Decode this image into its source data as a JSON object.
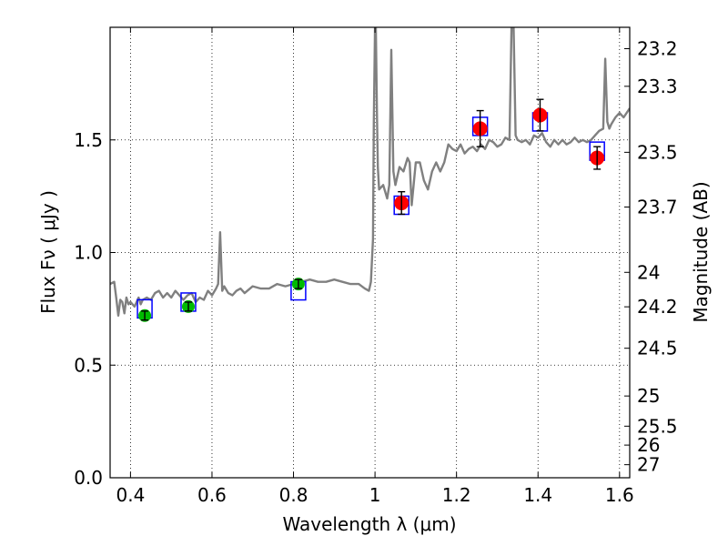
{
  "chart_data": {
    "type": "scatter",
    "title": "",
    "xlabel": "Wavelength  λ (μm)",
    "ylabel": "Flux  Fν  ( μJy )",
    "y2label": "Magnitude (AB)",
    "xlim": [
      0.35,
      1.625
    ],
    "ylim": [
      0.0,
      2.0
    ],
    "grid": true,
    "x_ticks": [
      0.4,
      0.6,
      0.8,
      1.0,
      1.2,
      1.4,
      1.6
    ],
    "x_tick_labels": [
      "0.4",
      "0.6",
      "0.8",
      "1",
      "1.2",
      "1.4",
      "1.6"
    ],
    "y_ticks": [
      0.0,
      0.5,
      1.0,
      1.5
    ],
    "y_tick_labels": [
      "0.0",
      "0.5",
      "1.0",
      "1.5"
    ],
    "y2_ticks": [
      {
        "flux": 1.905,
        "label": "23.2"
      },
      {
        "flux": 1.738,
        "label": "23.3"
      },
      {
        "flux": 1.445,
        "label": "23.5"
      },
      {
        "flux": 1.202,
        "label": "23.7"
      },
      {
        "flux": 0.912,
        "label": "24"
      },
      {
        "flux": 0.759,
        "label": "24.2"
      },
      {
        "flux": 0.575,
        "label": "24.5"
      },
      {
        "flux": 0.363,
        "label": "25"
      },
      {
        "flux": 0.229,
        "label": "25.5"
      },
      {
        "flux": 0.145,
        "label": "26"
      },
      {
        "flux": 0.058,
        "label": "27"
      }
    ],
    "series": [
      {
        "kind": "model_spectrum",
        "color": "#808080",
        "x": [
          0.35,
          0.36,
          0.365,
          0.37,
          0.375,
          0.38,
          0.385,
          0.39,
          0.395,
          0.4,
          0.41,
          0.42,
          0.425,
          0.43,
          0.44,
          0.45,
          0.46,
          0.47,
          0.48,
          0.49,
          0.5,
          0.51,
          0.52,
          0.53,
          0.54,
          0.55,
          0.56,
          0.57,
          0.58,
          0.59,
          0.6,
          0.61,
          0.615,
          0.62,
          0.625,
          0.63,
          0.64,
          0.65,
          0.66,
          0.67,
          0.68,
          0.7,
          0.72,
          0.74,
          0.76,
          0.78,
          0.8,
          0.82,
          0.84,
          0.86,
          0.88,
          0.9,
          0.92,
          0.94,
          0.96,
          0.975,
          0.985,
          0.99,
          0.995,
          0.997,
          1.0,
          1.002,
          1.005,
          1.007,
          1.01,
          1.02,
          1.03,
          1.035,
          1.04,
          1.045,
          1.05,
          1.06,
          1.07,
          1.08,
          1.085,
          1.09,
          1.1,
          1.11,
          1.12,
          1.13,
          1.14,
          1.15,
          1.16,
          1.17,
          1.18,
          1.19,
          1.2,
          1.21,
          1.22,
          1.23,
          1.24,
          1.25,
          1.26,
          1.27,
          1.28,
          1.29,
          1.3,
          1.31,
          1.32,
          1.33,
          1.335,
          1.34,
          1.345,
          1.35,
          1.36,
          1.37,
          1.38,
          1.39,
          1.4,
          1.41,
          1.42,
          1.43,
          1.44,
          1.45,
          1.46,
          1.47,
          1.48,
          1.49,
          1.5,
          1.51,
          1.52,
          1.53,
          1.54,
          1.55,
          1.56,
          1.565,
          1.57,
          1.575,
          1.58,
          1.59,
          1.6,
          1.61,
          1.625
        ],
        "y": [
          0.86,
          0.87,
          0.8,
          0.72,
          0.79,
          0.78,
          0.73,
          0.8,
          0.77,
          0.78,
          0.76,
          0.8,
          0.77,
          0.79,
          0.8,
          0.79,
          0.82,
          0.83,
          0.8,
          0.82,
          0.8,
          0.83,
          0.81,
          0.79,
          0.81,
          0.82,
          0.78,
          0.8,
          0.79,
          0.83,
          0.81,
          0.84,
          0.86,
          1.09,
          0.83,
          0.85,
          0.82,
          0.81,
          0.83,
          0.84,
          0.82,
          0.85,
          0.84,
          0.84,
          0.86,
          0.85,
          0.86,
          0.87,
          0.88,
          0.87,
          0.87,
          0.88,
          0.87,
          0.86,
          0.86,
          0.84,
          0.83,
          0.87,
          1.06,
          1.58,
          2.0,
          2.0,
          1.6,
          1.38,
          1.28,
          1.3,
          1.24,
          1.3,
          1.9,
          1.36,
          1.3,
          1.38,
          1.36,
          1.42,
          1.4,
          1.21,
          1.4,
          1.4,
          1.32,
          1.28,
          1.36,
          1.4,
          1.36,
          1.4,
          1.48,
          1.46,
          1.45,
          1.48,
          1.44,
          1.46,
          1.47,
          1.45,
          1.48,
          1.46,
          1.5,
          1.49,
          1.47,
          1.48,
          1.51,
          1.5,
          2.0,
          2.0,
          1.52,
          1.5,
          1.49,
          1.5,
          1.48,
          1.52,
          1.51,
          1.53,
          1.49,
          1.47,
          1.5,
          1.48,
          1.5,
          1.48,
          1.49,
          1.51,
          1.49,
          1.5,
          1.49,
          1.5,
          1.52,
          1.54,
          1.55,
          1.86,
          1.58,
          1.55,
          1.57,
          1.6,
          1.62,
          1.6,
          1.64
        ]
      },
      {
        "kind": "model_photometry",
        "marker": "open-square",
        "color": "#0000ff",
        "x": [
          0.435,
          0.542,
          0.812,
          1.065,
          1.258,
          1.405,
          1.545
        ],
        "y": [
          0.75,
          0.78,
          0.83,
          1.21,
          1.56,
          1.58,
          1.45
        ]
      },
      {
        "kind": "observed_optical",
        "marker": "filled-circle",
        "color": "#00bb00",
        "x": [
          0.435,
          0.542,
          0.812
        ],
        "y": [
          0.72,
          0.76,
          0.86
        ],
        "yerr": [
          0.02,
          0.02,
          0.02
        ]
      },
      {
        "kind": "observed_nir",
        "marker": "filled-circle",
        "color": "#ff0000",
        "x": [
          1.065,
          1.258,
          1.405,
          1.545
        ],
        "y": [
          1.22,
          1.55,
          1.61,
          1.42
        ],
        "yerr": [
          0.05,
          0.08,
          0.07,
          0.05
        ]
      }
    ]
  }
}
